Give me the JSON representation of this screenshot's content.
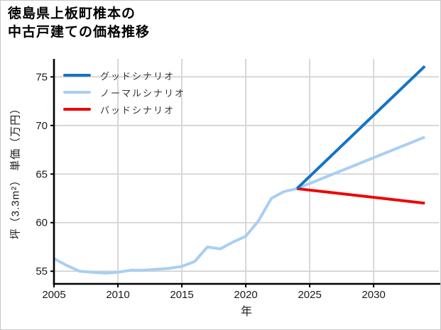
{
  "title": {
    "line1": "徳島県上板町椎本の",
    "line2": "中古戸建ての価格推移"
  },
  "chart_data": {
    "type": "line",
    "title": "徳島県上板町椎本の中古戸建ての価格推移",
    "xlabel": "年",
    "ylabel": "坪（3.3m²） 単価（万円）",
    "xlim": [
      2005,
      2035.1
    ],
    "ylim": [
      53.7,
      76.85
    ],
    "x_ticks": [
      2005,
      2010,
      2015,
      2020,
      2025,
      2030
    ],
    "y_ticks": [
      55,
      60,
      65,
      70,
      75
    ],
    "grid": true,
    "legend_position": "top-left",
    "colors": {
      "grid": "#d4d4d4",
      "axis": "#000000",
      "tick_text": "#1a1a1a"
    },
    "draw_order": [
      1,
      2,
      0
    ],
    "series": [
      {
        "id": "good",
        "name": "グッドシナリオ",
        "color": "#1474c4",
        "x": [
          2024,
          2034
        ],
        "values": [
          63.5,
          76.1
        ]
      },
      {
        "id": "normal",
        "name": "ノーマルシナリオ",
        "color": "#a9cff2",
        "x": [
          2005,
          2006,
          2007,
          2008,
          2009,
          2010,
          2011,
          2012,
          2013,
          2014,
          2015,
          2016,
          2017,
          2018,
          2019,
          2020,
          2021,
          2022,
          2023,
          2024,
          2034
        ],
        "values": [
          56.3,
          55.6,
          55.0,
          54.9,
          54.8,
          54.9,
          55.1,
          55.1,
          55.2,
          55.3,
          55.5,
          56.0,
          57.5,
          57.3,
          58.0,
          58.6,
          60.2,
          62.5,
          63.2,
          63.5,
          68.8
        ]
      },
      {
        "id": "bad",
        "name": "バッドシナリオ",
        "color": "#ef0000",
        "x": [
          2024,
          2034
        ],
        "values": [
          63.5,
          62.0
        ]
      }
    ]
  }
}
